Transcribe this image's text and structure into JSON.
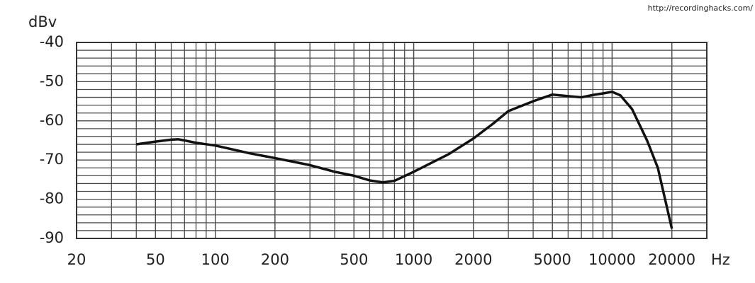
{
  "chart_data": {
    "type": "line",
    "y_label": "dBv",
    "x_label": "Hz",
    "annotation": "http://recordinghacks.com/",
    "x_scale": "log",
    "grid": true,
    "color": "#111111",
    "xlim": [
      20,
      30000
    ],
    "xticks": [
      20,
      50,
      100,
      200,
      500,
      1000,
      2000,
      5000,
      10000,
      20000
    ],
    "ylim": [
      -90,
      -40
    ],
    "yticks": [
      -90,
      -80,
      -70,
      -60,
      -50,
      -40
    ],
    "x": [
      40,
      50,
      60,
      65,
      70,
      80,
      100,
      150,
      200,
      300,
      400,
      500,
      600,
      700,
      800,
      1000,
      1500,
      2000,
      2500,
      3000,
      4000,
      5000,
      6000,
      7000,
      8000,
      9000,
      10000,
      11000,
      12600,
      15000,
      17000,
      20000
    ],
    "values": [
      -66,
      -65.3,
      -64.8,
      -64.7,
      -65,
      -65.6,
      -66.3,
      -68.3,
      -69.5,
      -71.3,
      -73,
      -74,
      -75.2,
      -75.7,
      -75.3,
      -73,
      -68.5,
      -64.5,
      -60.8,
      -57.5,
      -55,
      -53.3,
      -53.7,
      -54,
      -53.4,
      -53,
      -52.6,
      -53.5,
      -57,
      -65,
      -72,
      -87.5
    ]
  }
}
